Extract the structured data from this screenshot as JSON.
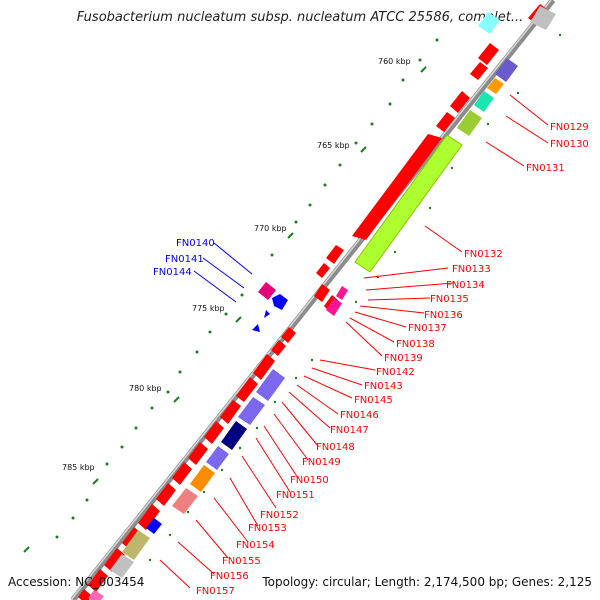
{
  "title": "Fusobacterium nucleatum subsp. nucleatum ATCC 25586, complet...",
  "accession": "Accession: NC_003454",
  "summary": "Topology: circular; Length: 2,174,500 bp; Genes: 2,125",
  "colors": {
    "red": "#ff0000",
    "blue": "#0000ff",
    "tick": "#1a7f1a",
    "backbone": "#8c8c8c"
  },
  "scale_labels": [
    "760 kbp",
    "765 kbp",
    "770 kbp",
    "775 kbp",
    "780 kbp",
    "785 kbp"
  ],
  "red_genes": [
    "FN0129",
    "FN0130",
    "FN0131",
    "FN0132",
    "FN0133",
    "FN0134",
    "FN0135",
    "FN0136",
    "FN0137",
    "FN0138",
    "FN0139",
    "FN0142",
    "FN0143",
    "FN0145",
    "FN0146",
    "FN0147",
    "FN0148",
    "FN0149",
    "FN0150",
    "FN0151",
    "FN0152",
    "FN0153",
    "FN0154",
    "FN0155",
    "FN0156",
    "FN0157"
  ],
  "blue_genes": [
    "FN0140",
    "FN0141",
    "FN0144"
  ]
}
